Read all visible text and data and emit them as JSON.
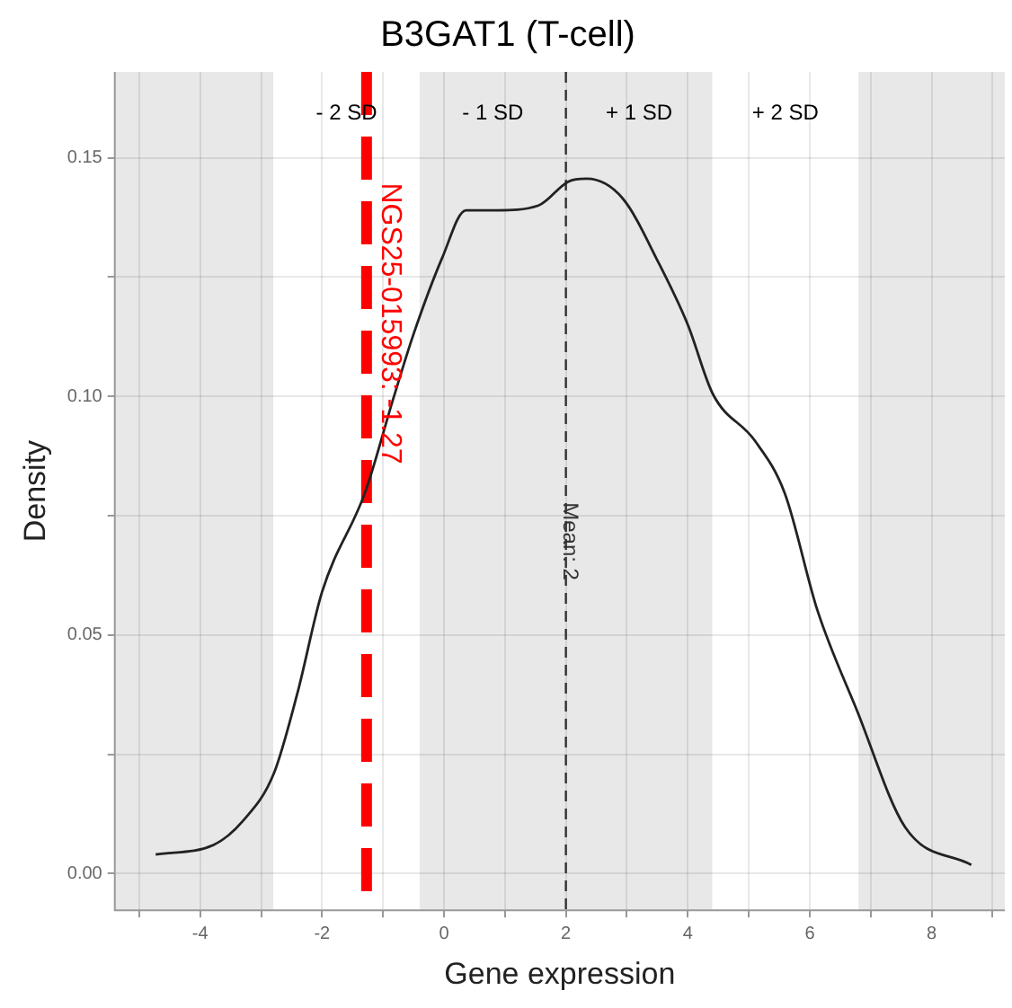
{
  "chart_data": {
    "type": "line",
    "title": "B3GAT1 (T-cell)",
    "xlabel": "Gene expression",
    "ylabel": "Density",
    "x": [
      -4.73,
      -3.78,
      -3.3,
      -2.79,
      -2.4,
      -2.0,
      -1.29,
      -0.82,
      -0.5,
      -0.03,
      0.36,
      0.86,
      1.55,
      2.04,
      2.34,
      2.93,
      3.52,
      4.0,
      4.41,
      5.1,
      5.59,
      6.13,
      6.78,
      7.56,
      8.65
    ],
    "series": [
      {
        "color": "#222222",
        "values": [
          0.004,
          0.006,
          0.011,
          0.021,
          0.038,
          0.059,
          0.08,
          0.1,
          0.113,
          0.129,
          0.139,
          0.139,
          0.14,
          0.145,
          0.1456,
          0.1415,
          0.128,
          0.115,
          0.1005,
          0.0907,
          0.0797,
          0.055,
          0.034,
          0.0098,
          0.0018
        ]
      }
    ],
    "xlim": [
      -5.4,
      9.2
    ],
    "ylim": [
      -0.0077,
      0.168
    ],
    "xticks": [
      {
        "value": -5,
        "label": null
      },
      -4,
      {
        "value": -3,
        "label": null
      },
      -2,
      {
        "value": -1,
        "label": null
      },
      0,
      {
        "value": 1,
        "label": null
      },
      2,
      {
        "value": 3,
        "label": null
      },
      4,
      {
        "value": 5,
        "label": null
      },
      6,
      {
        "value": 7,
        "label": null
      },
      8,
      {
        "value": 9,
        "label": null
      }
    ],
    "yticks": [
      {
        "value": 0,
        "label": "0.00"
      },
      {
        "value": 0.025,
        "label": null
      },
      {
        "value": 0.05,
        "label": "0.05"
      },
      {
        "value": 0.075,
        "label": null
      },
      {
        "value": 0.1,
        "label": "0.10"
      },
      {
        "value": 0.125,
        "label": null
      },
      {
        "value": 0.15,
        "label": "0.15"
      }
    ],
    "bands": [
      {
        "axis": "x",
        "from": -5.4,
        "to": -2.8,
        "color": "#e8e8e8"
      },
      {
        "axis": "x",
        "from": -0.4,
        "to": 4.4,
        "color": "#e8e8e8"
      },
      {
        "axis": "x",
        "from": 6.8,
        "to": 9.2,
        "color": "#e8e8e8"
      }
    ],
    "annotations": [
      "- 2 SD",
      "- 1 SD",
      "+ 1 SD",
      "+ 2 SD"
    ],
    "ref_lines": [
      {
        "axis": "x",
        "value": 2,
        "label": "Mean: 2",
        "color": "#333333",
        "line_style": "dashed"
      },
      {
        "axis": "x",
        "value": -1.27,
        "label": "NGS25-015993: -1.27",
        "color": "#ff0000",
        "line_style": "dashed"
      }
    ],
    "grid": true,
    "legend": false,
    "marker": "none",
    "line_style": "solid"
  }
}
